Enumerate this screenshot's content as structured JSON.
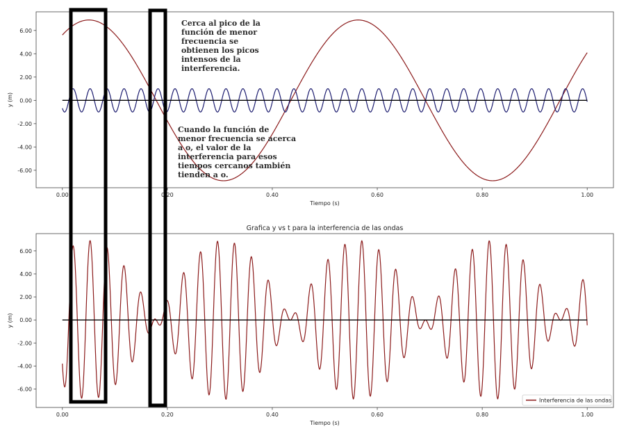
{
  "chart_data": [
    {
      "type": "line",
      "title": "",
      "xlabel": "Tiempo (s)",
      "ylabel": "y (m)",
      "xlim": [
        -0.05,
        1.05
      ],
      "ylim": [
        -7.5,
        7.6
      ],
      "x_ticks": [
        "0.00",
        "0.20",
        "0.40",
        "0.60",
        "0.80",
        "1.00"
      ],
      "y_ticks": [
        "6.00",
        "4.00",
        "2.00",
        "0.00",
        "-2.00",
        "-4.00",
        "-6.00"
      ],
      "grid": false,
      "series": [
        {
          "kind": "sine",
          "amplitude": 6.9,
          "frequency_hz": 1.95,
          "phase_rad": 0.95,
          "x_range": [
            0,
            1
          ],
          "color": "#8b1a1a"
        },
        {
          "kind": "sine",
          "amplitude": 1.0,
          "frequency_hz": 30.9,
          "phase_rad": -2.4,
          "x_range": [
            0,
            1
          ],
          "color": "#1a1a6e"
        },
        {
          "kind": "baseline",
          "value": 0,
          "x_range": [
            0,
            1
          ],
          "color": "#000000"
        }
      ],
      "annotations": [
        {
          "lines": [
            "Cerca al pico de la",
            "función de menor",
            "frecuencia se",
            "obtienen los picos",
            "intensos de la",
            "interferencia."
          ]
        },
        {
          "lines": [
            "Cuando la función de",
            "menor frecuencia se acerca",
            "a o, el valor de la",
            "interferencia para esos",
            "tiempos cercanos también",
            "tienden a o."
          ]
        }
      ]
    },
    {
      "type": "line",
      "title": "Grafica y vs t para la interferencia de las ondas",
      "xlabel": "Tiempo (s)",
      "ylabel": "y (m)",
      "xlim": [
        -0.05,
        1.05
      ],
      "ylim": [
        -7.6,
        7.5
      ],
      "x_ticks": [
        "0.00",
        "0.20",
        "0.40",
        "0.60",
        "0.80",
        "1.00"
      ],
      "y_ticks": [
        "6.00",
        "4.00",
        "2.00",
        "0.00",
        "-2.00",
        "-4.00",
        "-6.00"
      ],
      "grid": false,
      "legend": "bottom-right",
      "series": [
        {
          "name": "Interferencia de las ondas",
          "kind": "product",
          "envelope_amplitude": 6.9,
          "envelope_frequency_hz": 1.95,
          "envelope_phase_rad": 0.95,
          "carrier_frequency_hz": 30.9,
          "carrier_phase_rad": -2.4,
          "x_range": [
            0,
            1
          ],
          "color": "#8b1a1a"
        },
        {
          "kind": "baseline",
          "value": 0,
          "x_range": [
            0,
            1
          ],
          "color": "#000000"
        }
      ]
    }
  ],
  "highlight_boxes": [
    {
      "color": "#000000"
    },
    {
      "color": "#000000"
    }
  ]
}
